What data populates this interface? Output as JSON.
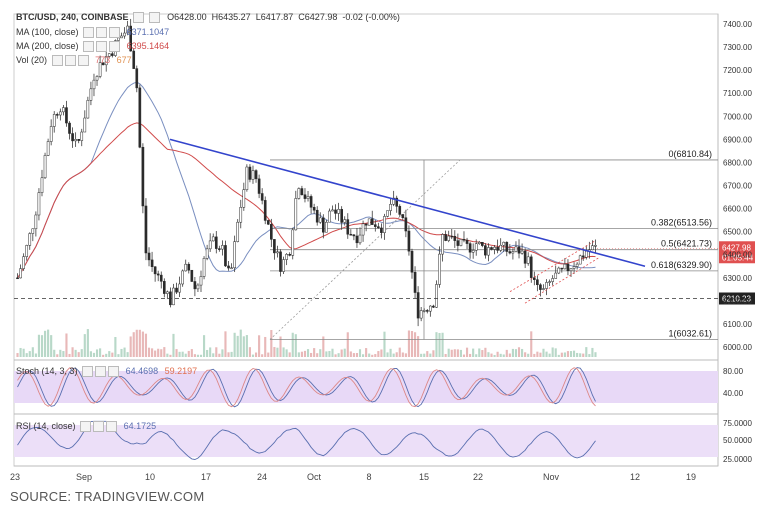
{
  "header": {
    "symbol": "BTC/USD, 240, COINBASE",
    "ohlc": [
      {
        "label": "O",
        "value": "6428.00"
      },
      {
        "label": "H",
        "value": "6435.27"
      },
      {
        "label": "L",
        "value": "6417.87"
      },
      {
        "label": "C",
        "value": "6427.98"
      }
    ],
    "change": "-0.02 (-0.00%)"
  },
  "indicators": {
    "ma100": {
      "label": "MA (100, close)",
      "value": "6371.1047",
      "color": "#7a8fc0"
    },
    "ma200": {
      "label": "MA (200, close)",
      "value": "6395.1464",
      "color": "#d04a4a"
    },
    "vol": {
      "label": "Vol (20)",
      "value1": "773",
      "value2": "677"
    },
    "stoch": {
      "label": "Stoch (14, 3, 3)",
      "value1": "64.4698",
      "value2": "59.2197"
    },
    "rsi": {
      "label": "RSI (14, close)",
      "value": "64.1725"
    }
  },
  "current_price": {
    "value": "6427.98",
    "countdown": "01:05:44",
    "color": "#e05050"
  },
  "support_label": {
    "value": "6210.23"
  },
  "fib": [
    {
      "label": "0(6810.84)",
      "price": 6810.84
    },
    {
      "label": "0.382(6513.56)",
      "price": 6513.56
    },
    {
      "label": "0.5(6421.73)",
      "price": 6421.73
    },
    {
      "label": "0.618(6329.90)",
      "price": 6329.9
    },
    {
      "label": "1(6032.61)",
      "price": 6032.61
    }
  ],
  "source": "SOURCE: TRADINGVIEW.COM",
  "chart_data": {
    "type": "candlestick",
    "price_axis": {
      "ticks": [
        "7400.00",
        "7300.00",
        "7200.00",
        "7100.00",
        "7000.00",
        "6900.00",
        "6800.00",
        "6700.00",
        "6600.00",
        "6500.00",
        "6400.00",
        "6300.00",
        "6200.00",
        "6100.00",
        "6000.00"
      ],
      "min": 6000,
      "max": 7400
    },
    "x_ticks": [
      "23",
      "Sep",
      "10",
      "17",
      "24",
      "Oct",
      "8",
      "15",
      "22",
      "Nov",
      "12",
      "19"
    ],
    "stoch_ticks": [
      "80.00",
      "40.00"
    ],
    "rsi_ticks": [
      "75.0000",
      "50.0000",
      "25.0000"
    ],
    "close_path": [
      6300,
      6420,
      6560,
      6780,
      6980,
      7050,
      6950,
      6860,
      7020,
      7180,
      7240,
      7280,
      7340,
      7380,
      7150,
      6420,
      6330,
      6280,
      6200,
      6280,
      6350,
      6240,
      6390,
      6460,
      6430,
      6290,
      6560,
      6760,
      6740,
      6600,
      6450,
      6350,
      6420,
      6720,
      6640,
      6580,
      6520,
      6600,
      6560,
      6500,
      6480,
      6550,
      6540,
      6520,
      6630,
      6580,
      6440,
      6150,
      6170,
      6200,
      6480,
      6470,
      6440,
      6430,
      6450,
      6420,
      6440,
      6430,
      6410,
      6420,
      6380,
      6250,
      6240,
      6300,
      6320,
      6350,
      6380,
      6420,
      6430
    ],
    "trendline": {
      "from": 6900,
      "to": 6350
    },
    "support": 6210.23
  }
}
